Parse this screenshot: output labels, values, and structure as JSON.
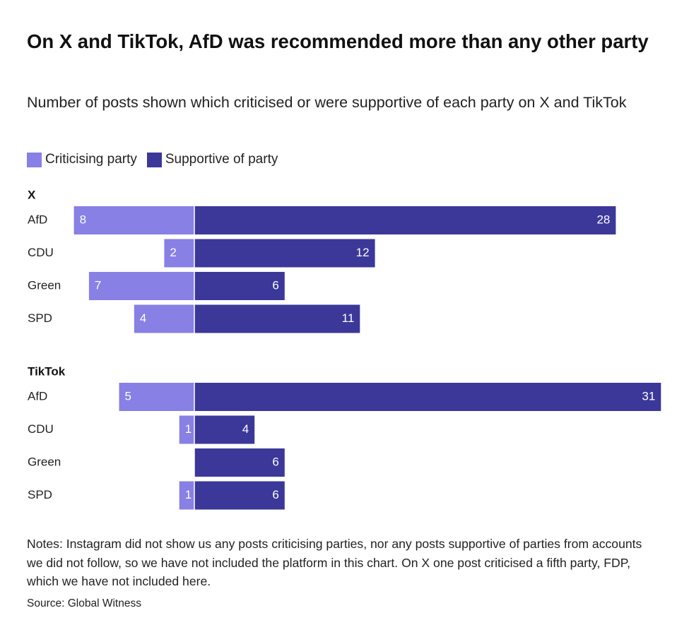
{
  "title": "On X and TikTok, AfD was recommended more than any other party",
  "subtitle": "Number of posts shown which criticised or were supportive of each party on X and TikTok",
  "legend": {
    "criticising": "Criticising party",
    "supportive": "Supportive of party"
  },
  "colors": {
    "criticising": "#8880e4",
    "supportive": "#3b3899",
    "bar_label": "#ffffff"
  },
  "chart_data": [
    {
      "type": "bar",
      "orientation": "horizontal",
      "stacking": "diverging",
      "panel": "X",
      "categories": [
        "AfD",
        "CDU",
        "Green",
        "SPD"
      ],
      "series": [
        {
          "name": "Criticising party",
          "values": [
            8,
            2,
            7,
            4
          ]
        },
        {
          "name": "Supportive of party",
          "values": [
            28,
            12,
            6,
            11
          ]
        }
      ]
    },
    {
      "type": "bar",
      "orientation": "horizontal",
      "stacking": "diverging",
      "panel": "TikTok",
      "categories": [
        "AfD",
        "CDU",
        "Green",
        "SPD"
      ],
      "series": [
        {
          "name": "Criticising party",
          "values": [
            5,
            1,
            0,
            1
          ]
        },
        {
          "name": "Supportive of party",
          "values": [
            31,
            4,
            6,
            6
          ]
        }
      ]
    }
  ],
  "notes": "Notes: Instagram did not show us any posts criticising parties, nor any posts supportive of parties from accounts we did not follow, so we have not included the platform in this chart. On X one post criticised a fifth party, FDP, which we have not included here.",
  "source": "Source: Global Witness"
}
